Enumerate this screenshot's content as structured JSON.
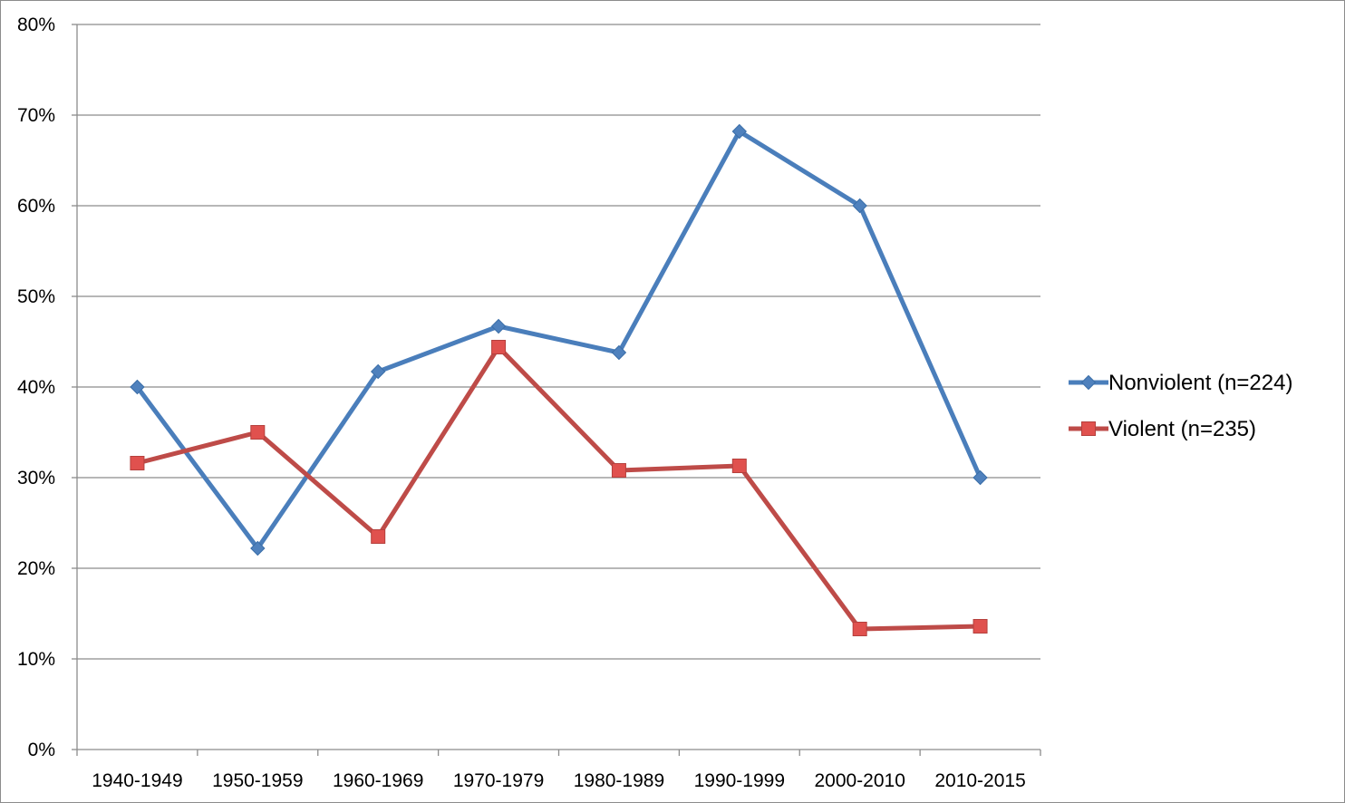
{
  "chart_data": {
    "type": "line",
    "title": "",
    "xlabel": "",
    "ylabel": "",
    "categories": [
      "1940-1949",
      "1950-1959",
      "1960-1969",
      "1970-1979",
      "1980-1989",
      "1990-1999",
      "2000-2010",
      "2010-2015"
    ],
    "y_ticks": [
      "0%",
      "10%",
      "20%",
      "30%",
      "40%",
      "50%",
      "60%",
      "70%",
      "80%"
    ],
    "ylim": [
      0,
      80
    ],
    "y_unit": "percent",
    "grid": "horizontal major gridlines",
    "legend_position": "right",
    "series": [
      {
        "name": "Nonviolent (n=224)",
        "marker": "diamond",
        "color": "#4a7ebb",
        "marker_color": "#4f81bd",
        "values": [
          40,
          22.2,
          41.7,
          46.7,
          43.8,
          68.2,
          60,
          30
        ]
      },
      {
        "name": "Violent (n=235)",
        "marker": "square",
        "color": "#be4b48",
        "marker_color": "#e0514e",
        "values": [
          31.6,
          35,
          23.5,
          44.4,
          30.8,
          31.3,
          13.3,
          13.6
        ]
      }
    ]
  }
}
